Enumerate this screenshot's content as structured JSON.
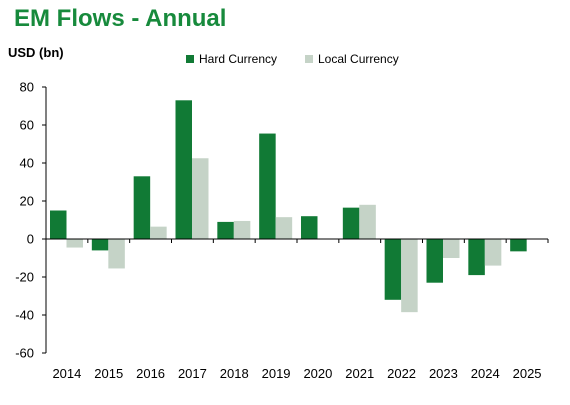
{
  "chart_data": {
    "type": "bar",
    "title": "EM Flows - Annual",
    "ylabel": "USD (bn)",
    "xlabel": "",
    "categories": [
      "2014",
      "2015",
      "2016",
      "2017",
      "2018",
      "2019",
      "2020",
      "2021",
      "2022",
      "2023",
      "2024",
      "2025"
    ],
    "series": [
      {
        "name": "Hard Currency",
        "color": "#117a35",
        "values": [
          15,
          -6,
          33,
          73,
          9,
          55.5,
          12,
          16.5,
          -32,
          -23,
          -19,
          -6.5
        ]
      },
      {
        "name": "Local Currency",
        "color": "#c5d3c7",
        "values": [
          -4.5,
          -15.5,
          6.5,
          42.5,
          9.5,
          11.5,
          null,
          18,
          -38.5,
          -10,
          -14,
          null
        ]
      }
    ],
    "ylim": [
      -60,
      80
    ],
    "yticks": [
      -60,
      -40,
      -20,
      0,
      20,
      40,
      60,
      80
    ],
    "grid": false,
    "legend_position": "top"
  }
}
